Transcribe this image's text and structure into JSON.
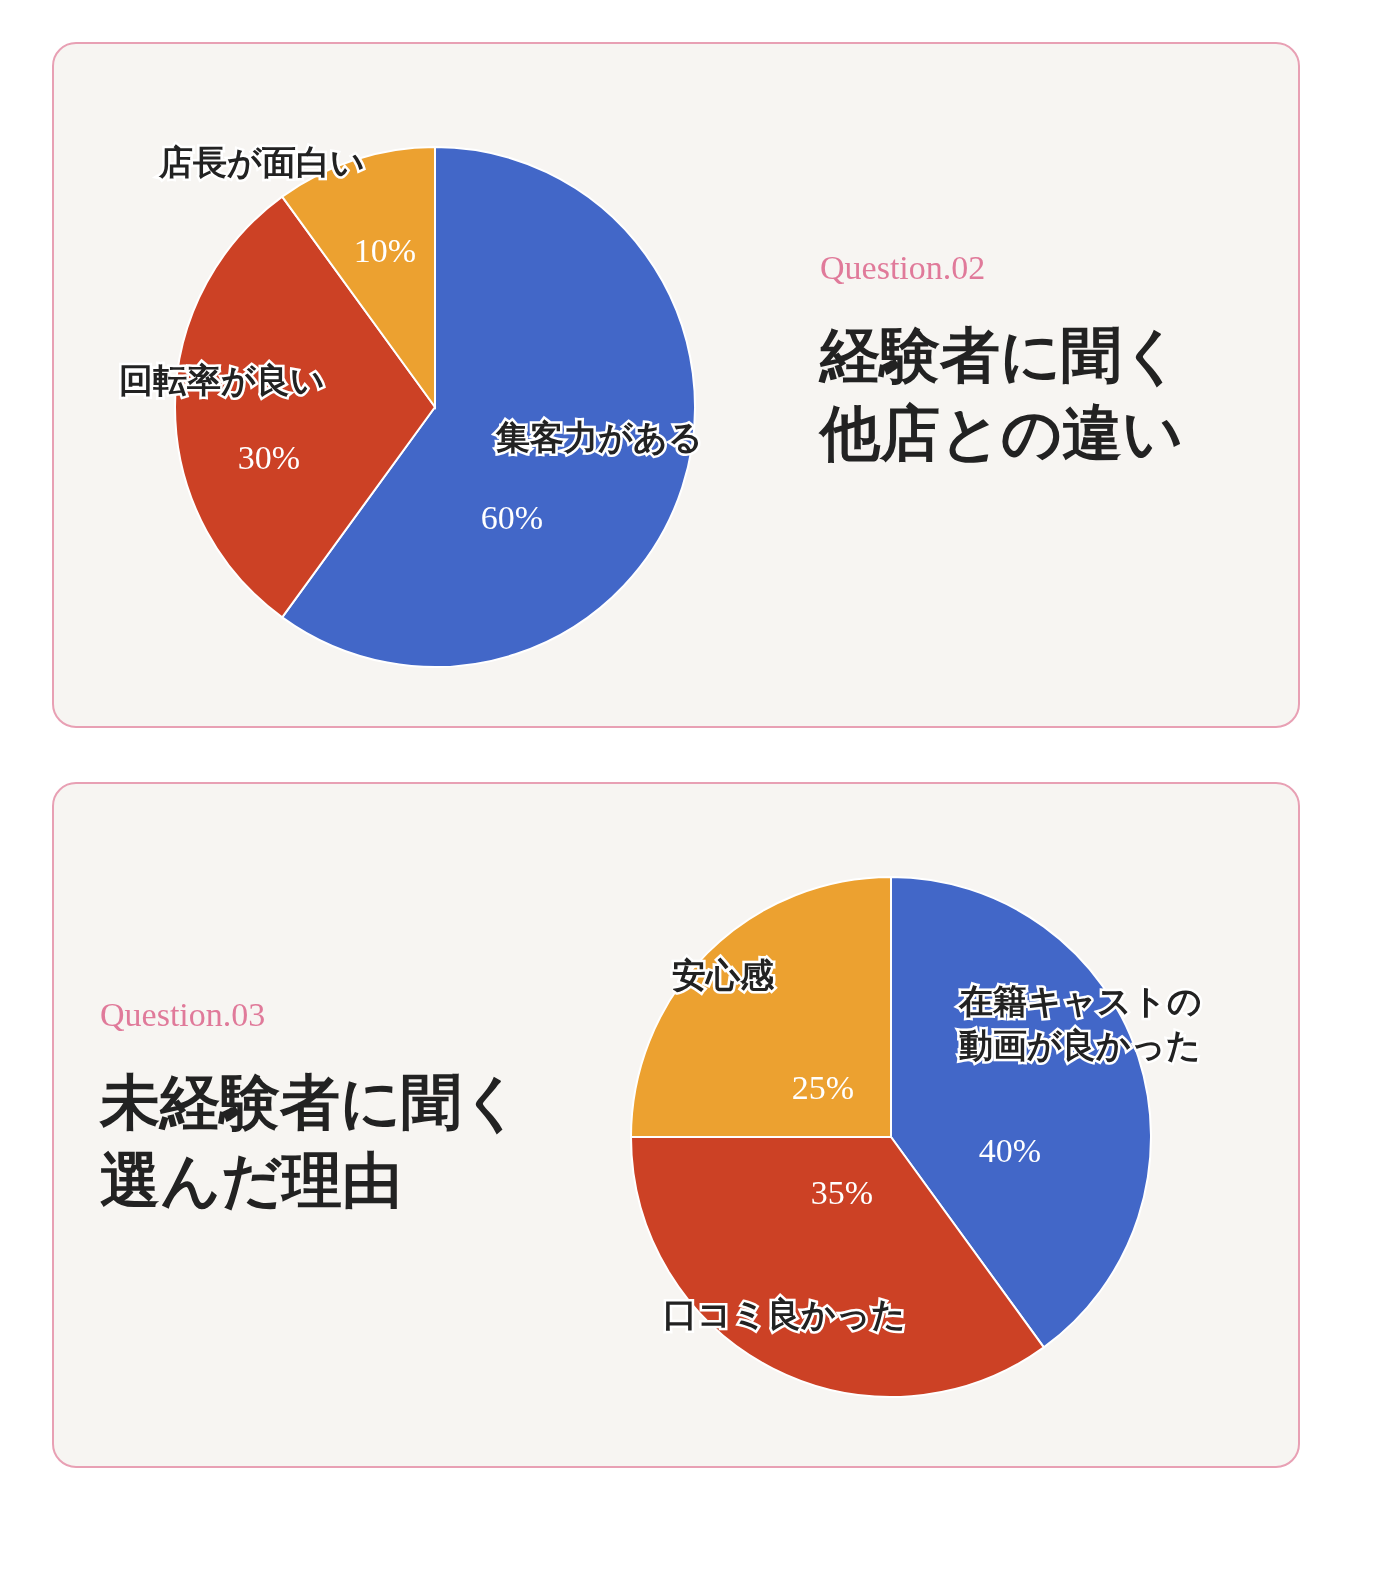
{
  "chart_data": [
    {
      "type": "pie",
      "title": "経験者に聞く他店との違い",
      "subtitle": "Question.02",
      "categories": [
        "集客力がある",
        "回転率が良い",
        "店長が面白い"
      ],
      "values": [
        60,
        30,
        10
      ],
      "colors": [
        "#4267c8",
        "#cc4125",
        "#eca130"
      ],
      "value_labels": [
        "60%",
        "30%",
        "10%"
      ]
    },
    {
      "type": "pie",
      "title": "未経験者に聞く選んだ理由",
      "subtitle": "Question.03",
      "categories": [
        "在籍キャストの動画が良かった",
        "口コミ良かった",
        "安心感"
      ],
      "values": [
        40,
        35,
        25
      ],
      "colors": [
        "#4267c8",
        "#cc4125",
        "#eca130"
      ],
      "value_labels": [
        "40%",
        "35%",
        "25%"
      ]
    }
  ]
}
